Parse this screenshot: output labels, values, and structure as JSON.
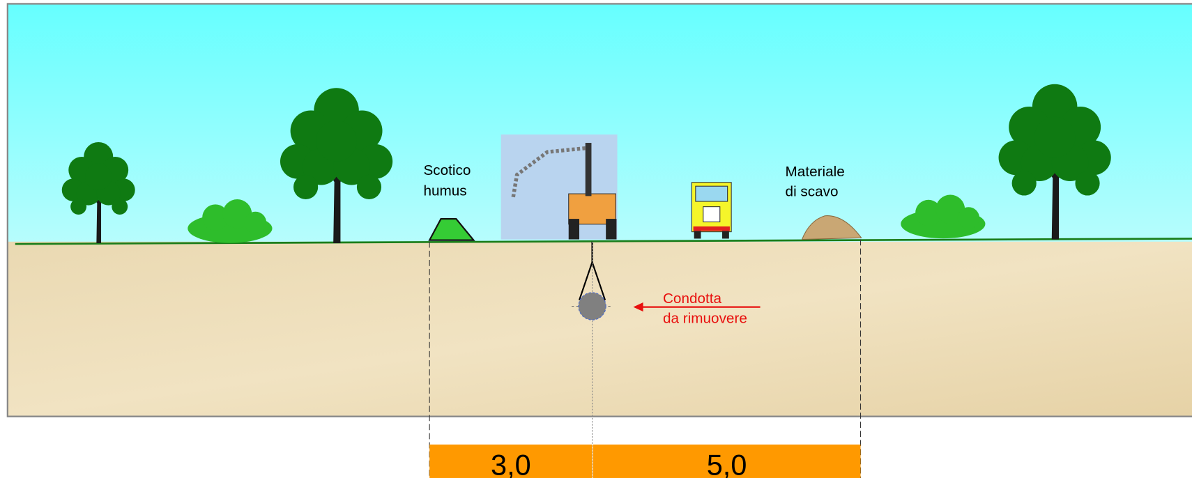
{
  "labels": {
    "humus": [
      "Scotico",
      "humus"
    ],
    "spoil": [
      "Materiale",
      "di scavo"
    ],
    "pipe": [
      "Condotta",
      "da rimuovere"
    ]
  },
  "dimensions": [
    "3,0",
    "5,0"
  ]
}
